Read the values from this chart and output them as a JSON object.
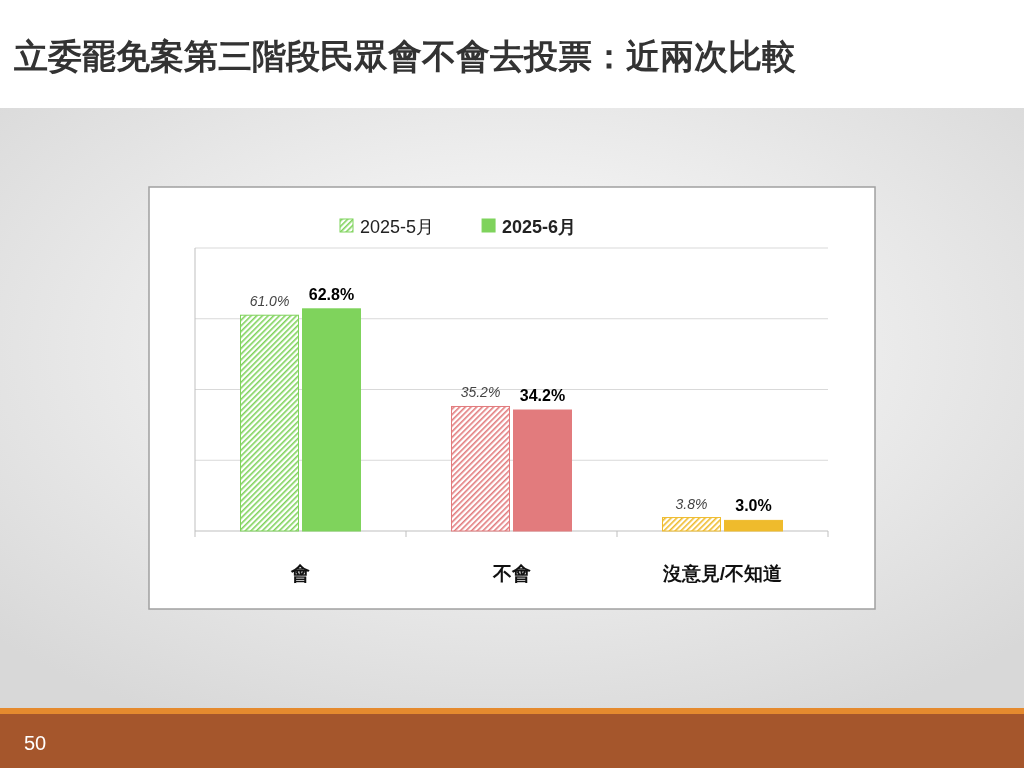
{
  "chart_data": {
    "type": "bar",
    "title": "立委罷免案第三階段民眾會不會去投票：近兩次比較",
    "categories": [
      "會",
      "不會",
      "沒意見/不知道"
    ],
    "series": [
      {
        "name": "2025-5月",
        "colors": [
          "#7fd35c",
          "#e27b7d",
          "#efbb2c"
        ],
        "values": [
          61.0,
          35.2,
          3.8
        ],
        "value_labels": [
          "61.0%",
          "35.2%",
          "3.8%"
        ]
      },
      {
        "name": "2025-6月",
        "colors": [
          "#7fd35c",
          "#e27b7d",
          "#efbb2c"
        ],
        "values": [
          62.8,
          34.2,
          3.0
        ],
        "value_labels": [
          "62.8%",
          "34.2%",
          "3.0%"
        ]
      }
    ],
    "ylim": [
      0,
      80
    ],
    "yticks": [
      {
        "value": 0,
        "label": null
      },
      {
        "value": 20,
        "label": null
      },
      {
        "value": 40,
        "label": null
      },
      {
        "value": 60,
        "label": null
      },
      {
        "value": 80,
        "label": null
      }
    ],
    "grid": "y",
    "legend": "top",
    "tick_labels": "x",
    "annotations": [
      "50"
    ]
  }
}
